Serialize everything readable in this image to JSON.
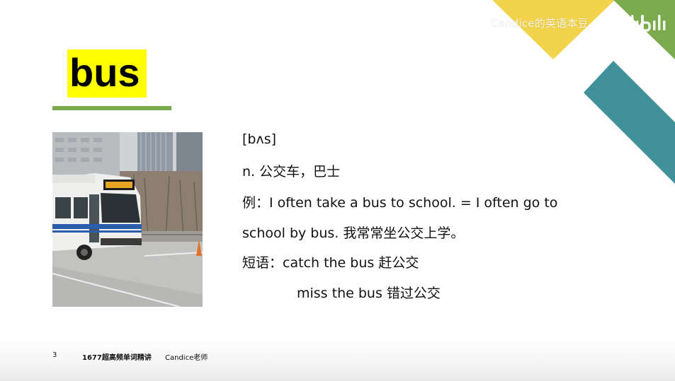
{
  "watermark": {
    "text": "Candice的英语本豆",
    "logo": "bilibili"
  },
  "word": {
    "text": "bus"
  },
  "photo": {
    "icon": "city-bus-photo"
  },
  "definition": {
    "phonetic": "[bʌs]",
    "meaning": "n. 公交车，巴士",
    "example_line1": "例：I often take a bus to school. = I often go to",
    "example_line2": "school by bus. 我常常坐公交上学。",
    "phrase1": "短语：catch the bus 赶公交",
    "phrase2": "miss the bus 错过公交"
  },
  "footer": {
    "page_number": "3",
    "course": "1677超高频单词精讲",
    "teacher": "Candice老师"
  },
  "colors": {
    "highlight": "#ffff00",
    "underline": "#7cab4e",
    "deco_yellow": "#f3d34a",
    "deco_green": "#7cab4e",
    "deco_teal": "#3f9098"
  }
}
